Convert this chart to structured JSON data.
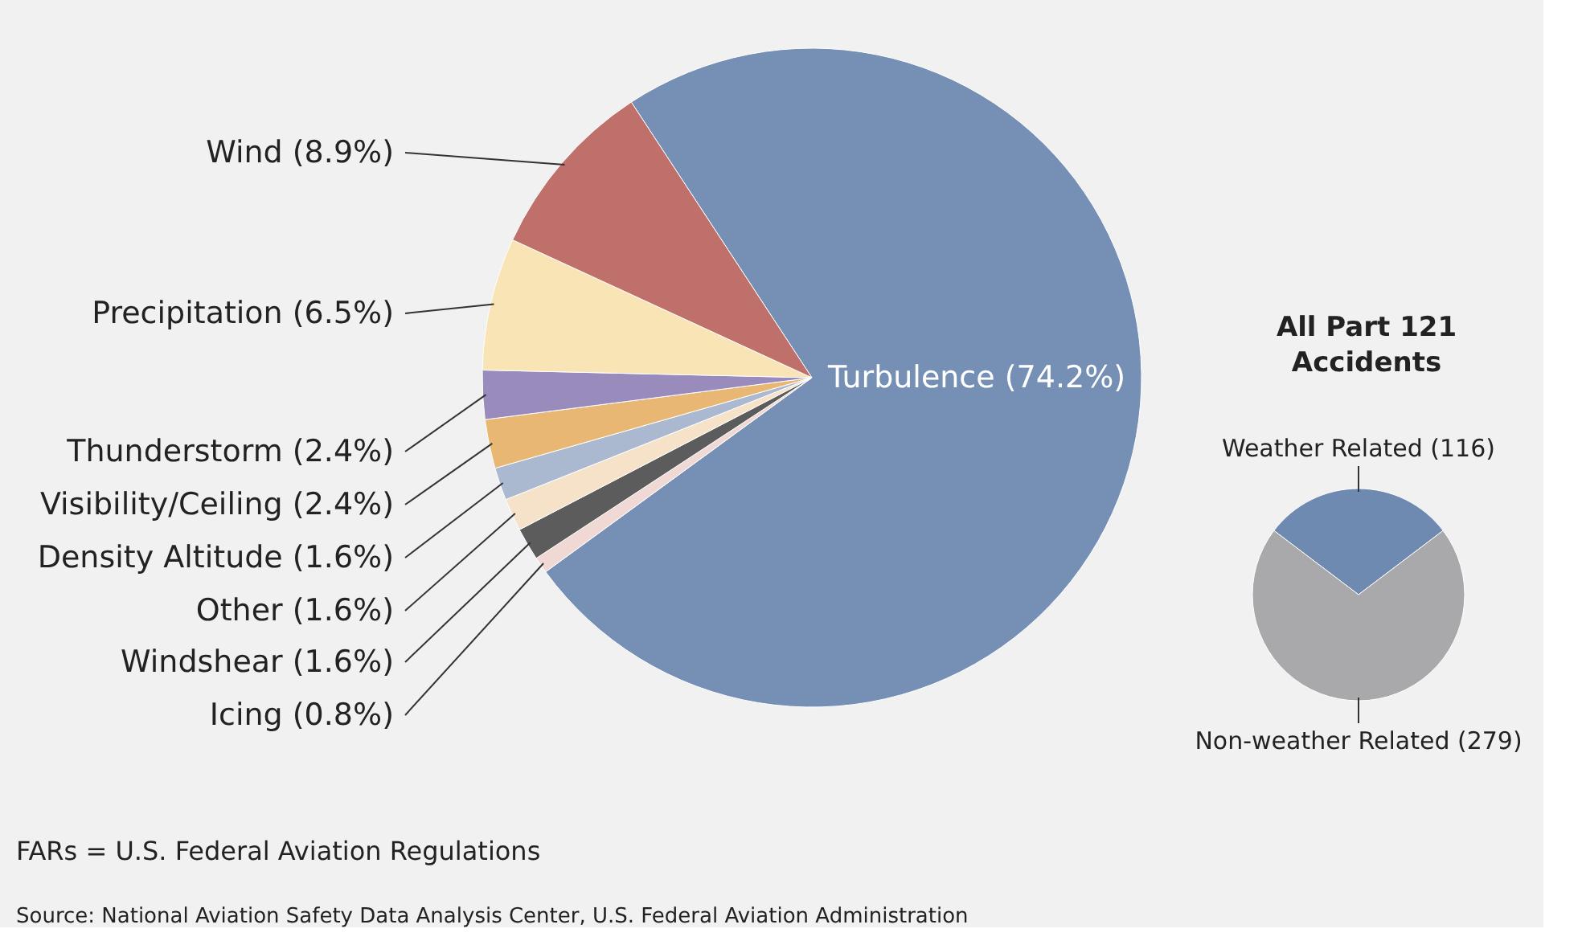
{
  "chart_data": [
    {
      "type": "pie",
      "categories": [
        "Turbulence",
        "Icing",
        "Windshear",
        "Other",
        "Density Altitude",
        "Visibility/Ceiling",
        "Thunderstorm",
        "Precipitation",
        "Wind"
      ],
      "values": [
        74.2,
        0.8,
        1.6,
        1.6,
        1.6,
        2.4,
        2.4,
        6.5,
        8.9
      ],
      "value_labels": [
        "(74.2%)",
        "(0.8%)",
        "(1.6%)",
        "(1.6%)",
        "(1.6%)",
        "(2.4%)",
        "(2.4%)",
        "(6.5%)",
        "(8.9%)"
      ],
      "colors": [
        "#7690b5",
        "#f0d8d4",
        "#5c5c5c",
        "#f5e2c8",
        "#aab8d0",
        "#e8b774",
        "#9a8bbd",
        "#f8e4b4",
        "#c0706a"
      ],
      "annotations": [
        "FARs = U.S. Federal Aviation Regulations",
        "Source: National Aviation Safety Data Analysis Center, U.S. Federal Aviation Administration"
      ]
    },
    {
      "type": "pie",
      "title": "All Part 121 Accidents",
      "categories": [
        "Weather Related",
        "Non-weather Related"
      ],
      "values": [
        116,
        279
      ],
      "value_labels": [
        "(116)",
        "(279)"
      ],
      "colors": [
        "#6f8ab0",
        "#a9a9ab"
      ]
    }
  ]
}
